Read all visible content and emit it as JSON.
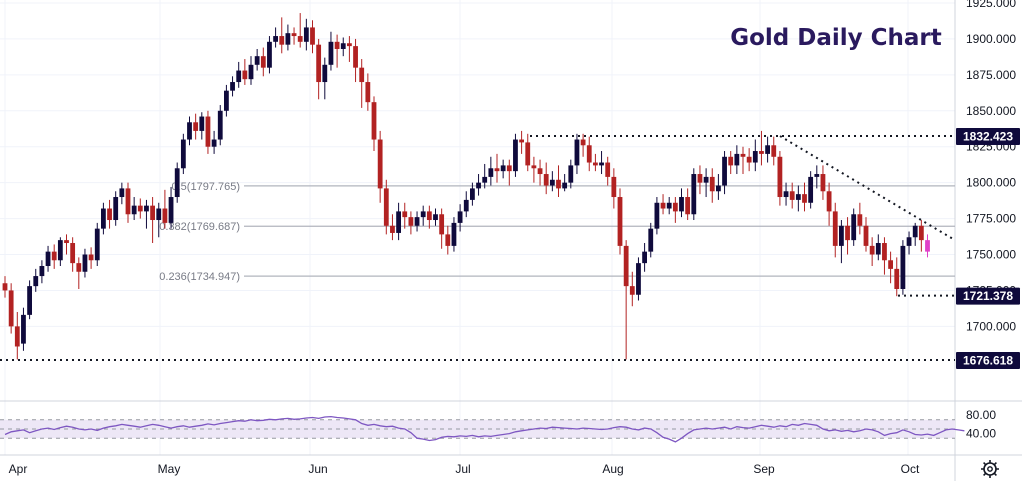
{
  "chart_data": {
    "type": "candlestick",
    "title": "Gold Daily Chart",
    "price_axis": {
      "ylim": [
        1676.6,
        1925
      ],
      "tick_labels": [
        "1925.000",
        "1900.000",
        "1875.000",
        "1850.000",
        "1825.000",
        "1800.000",
        "1775.000",
        "1750.000",
        "1725.000",
        "1700.000"
      ]
    },
    "time_axis": {
      "labels": [
        "Apr",
        "May",
        "Jun",
        "Jul",
        "Aug",
        "Sep",
        "Oct"
      ]
    },
    "colors": {
      "up": "#0f0a3c",
      "down": "#b22222",
      "last_candle": "#e040c8",
      "tag_bg": "#0f0a3c",
      "fib": "#b2b5be",
      "rsi": "#7e57c2"
    },
    "fib_levels": [
      {
        "label": "0.5(1797.765)",
        "value": 1797.765
      },
      {
        "label": "0.382(1769.687)",
        "value": 1769.687
      },
      {
        "label": "0.236(1734.947)",
        "value": 1734.947
      }
    ],
    "price_tags": [
      {
        "label": "1832.423",
        "value": 1832.423
      },
      {
        "label": "1721.378",
        "value": 1721.378
      },
      {
        "label": "1676.618",
        "value": 1676.618
      }
    ],
    "rsi": {
      "tick_labels": [
        "80.00",
        "40.00"
      ],
      "upper": 70,
      "lower": 30,
      "values": [
        38,
        44,
        46,
        48,
        42,
        46,
        50,
        52,
        49,
        53,
        56,
        54,
        50,
        48,
        50,
        47,
        52,
        55,
        57,
        60,
        58,
        56,
        54,
        57,
        60,
        58,
        55,
        52,
        55,
        57,
        54,
        56,
        58,
        61,
        59,
        62,
        64,
        66,
        68,
        67,
        70,
        68,
        69,
        71,
        70,
        72,
        73,
        71,
        72,
        74,
        75,
        73,
        76,
        77,
        75,
        74,
        72,
        70,
        62,
        58,
        60,
        57,
        55,
        56,
        52,
        50,
        42,
        30,
        28,
        25,
        27,
        32,
        34,
        33,
        35,
        34,
        36,
        33,
        35,
        34,
        36,
        38,
        40,
        44,
        46,
        48,
        50,
        52,
        51,
        54,
        53,
        52,
        51,
        50,
        52,
        51,
        50,
        49,
        50,
        53,
        55,
        54,
        50,
        48,
        52,
        50,
        42,
        32,
        28,
        22,
        30,
        40,
        48,
        50,
        52,
        50,
        52,
        54,
        50,
        55,
        53,
        52,
        55,
        58,
        56,
        54,
        57,
        55,
        60,
        58,
        62,
        60,
        58,
        50,
        46,
        48,
        45,
        47,
        44,
        46,
        50,
        48,
        44,
        36,
        40,
        42,
        48,
        44,
        38,
        37,
        39,
        36,
        42,
        48,
        50,
        48,
        46
      ]
    },
    "candles": [
      [
        1730,
        1725,
        1735,
        1720
      ],
      [
        1725,
        1700,
        1730,
        1695
      ],
      [
        1700,
        1686,
        1710,
        1677
      ],
      [
        1688,
        1708,
        1713,
        1683
      ],
      [
        1708,
        1728,
        1732,
        1705
      ],
      [
        1728,
        1735,
        1740,
        1724
      ],
      [
        1735,
        1742,
        1746,
        1730
      ],
      [
        1742,
        1752,
        1756,
        1738
      ],
      [
        1752,
        1746,
        1757,
        1740
      ],
      [
        1746,
        1760,
        1762,
        1742
      ],
      [
        1760,
        1758,
        1764,
        1750
      ],
      [
        1758,
        1744,
        1762,
        1738
      ],
      [
        1744,
        1738,
        1748,
        1726
      ],
      [
        1738,
        1750,
        1754,
        1734
      ],
      [
        1750,
        1746,
        1755,
        1740
      ],
      [
        1746,
        1768,
        1772,
        1742
      ],
      [
        1768,
        1782,
        1786,
        1764
      ],
      [
        1782,
        1774,
        1788,
        1768
      ],
      [
        1774,
        1790,
        1794,
        1770
      ],
      [
        1790,
        1796,
        1800,
        1785
      ],
      [
        1796,
        1778,
        1800,
        1772
      ],
      [
        1778,
        1784,
        1790,
        1774
      ],
      [
        1784,
        1780,
        1789,
        1775
      ],
      [
        1780,
        1784,
        1788,
        1768
      ],
      [
        1784,
        1774,
        1790,
        1758
      ],
      [
        1774,
        1782,
        1786,
        1762
      ],
      [
        1782,
        1772,
        1795,
        1768
      ],
      [
        1772,
        1790,
        1797,
        1768
      ],
      [
        1790,
        1810,
        1814,
        1786
      ],
      [
        1810,
        1830,
        1834,
        1806
      ],
      [
        1830,
        1842,
        1846,
        1826
      ],
      [
        1842,
        1836,
        1848,
        1830
      ],
      [
        1836,
        1846,
        1849,
        1830
      ],
      [
        1846,
        1825,
        1850,
        1820
      ],
      [
        1825,
        1830,
        1836,
        1820
      ],
      [
        1830,
        1850,
        1854,
        1826
      ],
      [
        1850,
        1864,
        1868,
        1846
      ],
      [
        1864,
        1870,
        1874,
        1860
      ],
      [
        1870,
        1878,
        1884,
        1866
      ],
      [
        1878,
        1872,
        1886,
        1868
      ],
      [
        1872,
        1882,
        1888,
        1868
      ],
      [
        1882,
        1888,
        1893,
        1878
      ],
      [
        1888,
        1880,
        1894,
        1874
      ],
      [
        1880,
        1898,
        1902,
        1876
      ],
      [
        1898,
        1902,
        1908,
        1894
      ],
      [
        1902,
        1896,
        1915,
        1890
      ],
      [
        1896,
        1904,
        1910,
        1892
      ],
      [
        1904,
        1902,
        1908,
        1896
      ],
      [
        1902,
        1898,
        1918,
        1894
      ],
      [
        1898,
        1908,
        1914,
        1892
      ],
      [
        1908,
        1896,
        1913,
        1890
      ],
      [
        1896,
        1870,
        1900,
        1858
      ],
      [
        1870,
        1882,
        1887,
        1858
      ],
      [
        1882,
        1898,
        1905,
        1878
      ],
      [
        1898,
        1893,
        1903,
        1880
      ],
      [
        1893,
        1897,
        1901,
        1888
      ],
      [
        1897,
        1895,
        1902,
        1884
      ],
      [
        1895,
        1880,
        1900,
        1870
      ],
      [
        1880,
        1870,
        1886,
        1852
      ],
      [
        1870,
        1856,
        1876,
        1850
      ],
      [
        1856,
        1830,
        1860,
        1822
      ],
      [
        1830,
        1796,
        1836,
        1786
      ],
      [
        1796,
        1770,
        1802,
        1764
      ],
      [
        1770,
        1765,
        1778,
        1760
      ],
      [
        1765,
        1780,
        1786,
        1760
      ],
      [
        1780,
        1776,
        1786,
        1768
      ],
      [
        1776,
        1770,
        1780,
        1764
      ],
      [
        1770,
        1776,
        1780,
        1766
      ],
      [
        1776,
        1780,
        1784,
        1770
      ],
      [
        1780,
        1774,
        1784,
        1768
      ],
      [
        1774,
        1778,
        1782,
        1770
      ],
      [
        1778,
        1764,
        1782,
        1754
      ],
      [
        1764,
        1756,
        1770,
        1750
      ],
      [
        1756,
        1772,
        1776,
        1752
      ],
      [
        1772,
        1780,
        1785,
        1766
      ],
      [
        1780,
        1788,
        1794,
        1776
      ],
      [
        1788,
        1796,
        1800,
        1784
      ],
      [
        1796,
        1800,
        1806,
        1791
      ],
      [
        1800,
        1804,
        1813,
        1796
      ],
      [
        1804,
        1810,
        1818,
        1798
      ],
      [
        1810,
        1808,
        1820,
        1800
      ],
      [
        1808,
        1812,
        1816,
        1803
      ],
      [
        1812,
        1808,
        1816,
        1798
      ],
      [
        1808,
        1830,
        1834,
        1804
      ],
      [
        1830,
        1828,
        1836,
        1820
      ],
      [
        1828,
        1812,
        1834,
        1808
      ],
      [
        1812,
        1810,
        1818,
        1800
      ],
      [
        1810,
        1806,
        1816,
        1798
      ],
      [
        1806,
        1798,
        1814,
        1792
      ],
      [
        1798,
        1802,
        1808,
        1794
      ],
      [
        1802,
        1796,
        1812,
        1790
      ],
      [
        1796,
        1800,
        1806,
        1794
      ],
      [
        1800,
        1812,
        1816,
        1796
      ],
      [
        1812,
        1830,
        1834,
        1806
      ],
      [
        1830,
        1826,
        1834,
        1818
      ],
      [
        1826,
        1814,
        1832,
        1808
      ],
      [
        1814,
        1812,
        1820,
        1808
      ],
      [
        1812,
        1814,
        1822,
        1806
      ],
      [
        1814,
        1804,
        1818,
        1798
      ],
      [
        1804,
        1790,
        1810,
        1782
      ],
      [
        1790,
        1756,
        1796,
        1750
      ],
      [
        1756,
        1728,
        1760,
        1677
      ],
      [
        1728,
        1722,
        1738,
        1714
      ],
      [
        1722,
        1744,
        1748,
        1718
      ],
      [
        1744,
        1752,
        1758,
        1738
      ],
      [
        1752,
        1768,
        1772,
        1748
      ],
      [
        1768,
        1786,
        1790,
        1764
      ],
      [
        1786,
        1782,
        1792,
        1778
      ],
      [
        1782,
        1786,
        1790,
        1778
      ],
      [
        1786,
        1780,
        1790,
        1772
      ],
      [
        1780,
        1790,
        1796,
        1776
      ],
      [
        1790,
        1778,
        1796,
        1774
      ],
      [
        1778,
        1806,
        1810,
        1774
      ],
      [
        1806,
        1800,
        1812,
        1792
      ],
      [
        1800,
        1804,
        1810,
        1790
      ],
      [
        1804,
        1794,
        1810,
        1786
      ],
      [
        1794,
        1798,
        1806,
        1788
      ],
      [
        1798,
        1818,
        1822,
        1792
      ],
      [
        1818,
        1812,
        1822,
        1806
      ],
      [
        1812,
        1820,
        1826,
        1806
      ],
      [
        1820,
        1818,
        1825,
        1806
      ],
      [
        1818,
        1814,
        1824,
        1808
      ],
      [
        1814,
        1822,
        1830,
        1808
      ],
      [
        1822,
        1820,
        1836,
        1812
      ],
      [
        1820,
        1826,
        1832,
        1814
      ],
      [
        1826,
        1818,
        1832,
        1812
      ],
      [
        1818,
        1790,
        1822,
        1784
      ],
      [
        1790,
        1794,
        1800,
        1784
      ],
      [
        1794,
        1788,
        1800,
        1782
      ],
      [
        1788,
        1792,
        1798,
        1780
      ],
      [
        1792,
        1786,
        1800,
        1780
      ],
      [
        1786,
        1804,
        1808,
        1782
      ],
      [
        1804,
        1806,
        1812,
        1796
      ],
      [
        1806,
        1794,
        1812,
        1788
      ],
      [
        1794,
        1780,
        1800,
        1770
      ],
      [
        1780,
        1756,
        1786,
        1748
      ],
      [
        1756,
        1770,
        1774,
        1744
      ],
      [
        1770,
        1760,
        1776,
        1750
      ],
      [
        1760,
        1778,
        1782,
        1756
      ],
      [
        1778,
        1770,
        1786,
        1764
      ],
      [
        1770,
        1756,
        1776,
        1752
      ],
      [
        1756,
        1750,
        1762,
        1742
      ],
      [
        1750,
        1758,
        1764,
        1746
      ],
      [
        1758,
        1746,
        1762,
        1736
      ],
      [
        1746,
        1740,
        1752,
        1730
      ],
      [
        1740,
        1726,
        1748,
        1721
      ],
      [
        1726,
        1756,
        1760,
        1722
      ],
      [
        1756,
        1762,
        1766,
        1750
      ],
      [
        1762,
        1770,
        1772,
        1756
      ],
      [
        1770,
        1760,
        1774,
        1752
      ],
      [
        1760,
        1752,
        1764,
        1748
      ]
    ]
  }
}
